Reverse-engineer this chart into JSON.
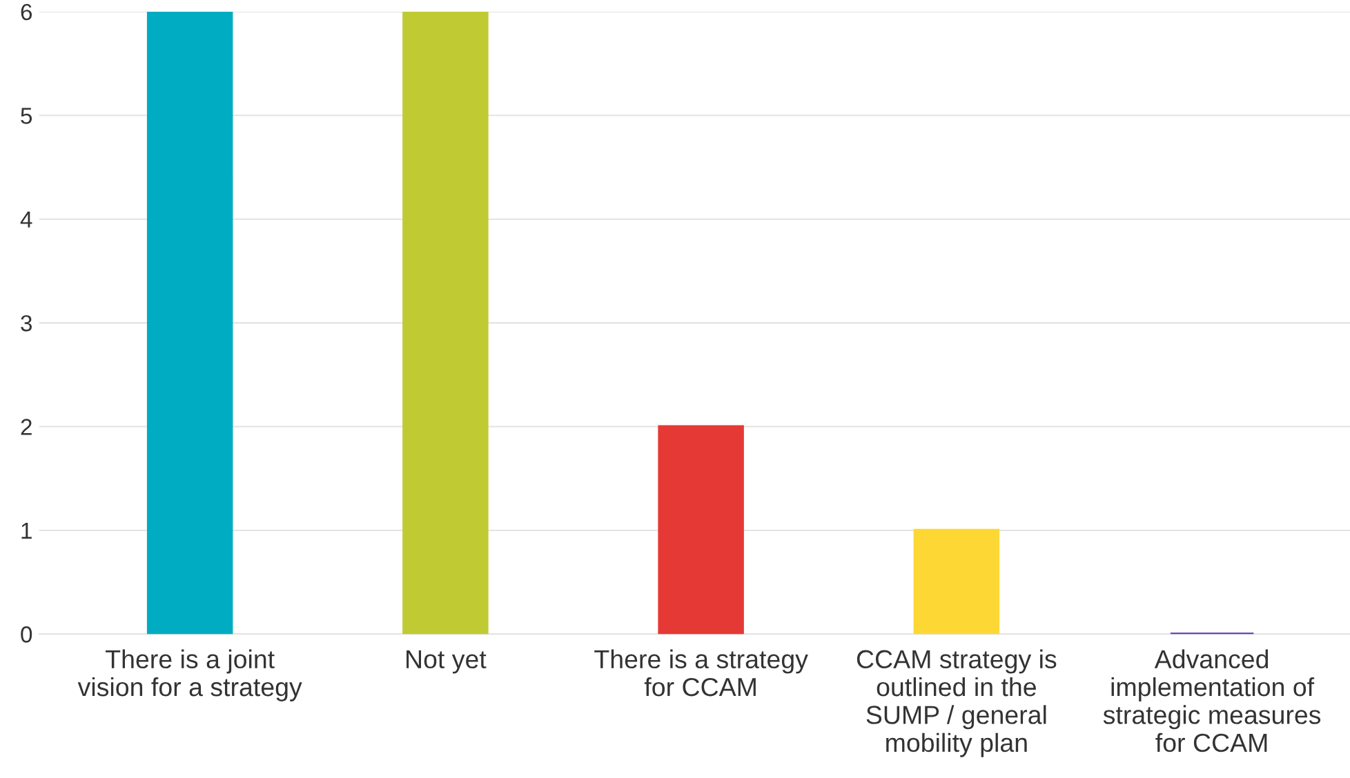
{
  "chart_data": {
    "type": "bar",
    "categories": [
      "There is a joint\nvision for a strategy",
      "Not yet",
      "There is a strategy\nfor CCAM",
      "CCAM strategy is\noutlined in the\nSUMP / general\nmobility plan",
      "Advanced\nimplementation of\nstrategic measures\nfor CCAM"
    ],
    "values": [
      6,
      6,
      2,
      1,
      0
    ],
    "colors": [
      "#00acc1",
      "#c0ca33",
      "#e53935",
      "#fdd835",
      "#5e35b1"
    ],
    "ylim": [
      0,
      6
    ],
    "yticks": [
      0,
      1,
      2,
      3,
      4,
      5,
      6
    ],
    "grid": "y",
    "legend": false
  }
}
